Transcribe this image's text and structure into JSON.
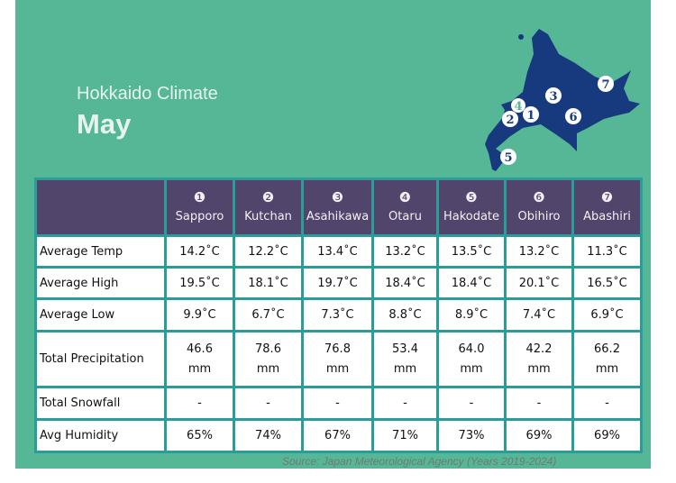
{
  "title": "Hokkaido Climate",
  "month": "May",
  "columns": [
    {
      "num": "❶",
      "city": "Sapporo"
    },
    {
      "num": "❷",
      "city": "Kutchan"
    },
    {
      "num": "❸",
      "city": "Asahikawa"
    },
    {
      "num": "❹",
      "city": "Otaru"
    },
    {
      "num": "❺",
      "city": "Hakodate"
    },
    {
      "num": "❻",
      "city": "Obihiro"
    },
    {
      "num": "❼",
      "city": "Abashiri"
    }
  ],
  "rows": [
    {
      "label": "Average Temp",
      "values": [
        "14.2˚C",
        "12.2˚C",
        "13.4˚C",
        "13.2˚C",
        "13.5˚C",
        "13.2˚C",
        "11.3˚C"
      ]
    },
    {
      "label": "Average High",
      "values": [
        "19.5˚C",
        "18.1˚C",
        "19.7˚C",
        "18.4˚C",
        "18.4˚C",
        "20.1˚C",
        "16.5˚C"
      ]
    },
    {
      "label": "Average Low",
      "values": [
        "9.9˚C",
        "6.7˚C",
        "7.3˚C",
        "8.8˚C",
        "8.9˚C",
        "7.4˚C",
        "6.9˚C"
      ]
    },
    {
      "label": "Total Precipitation",
      "values": [
        "46.6 mm",
        "78.6 mm",
        "76.8 mm",
        "53.4 mm",
        "64.0 mm",
        "42.2 mm",
        "66.2 mm"
      ]
    },
    {
      "label": "Total Snowfall",
      "values": [
        "-",
        "-",
        "-",
        "-",
        "-",
        "-",
        "-"
      ]
    },
    {
      "label": "Avg Humidity",
      "values": [
        "65%",
        "74%",
        "67%",
        "71%",
        "73%",
        "69%",
        "69%"
      ]
    }
  ],
  "map_markers": [
    "1",
    "2",
    "3",
    "4",
    "5",
    "6",
    "7"
  ],
  "source": "Source: Japan Meteorological Agency (Years 2019-2024)",
  "colors": {
    "background": "#55b796",
    "header": "#52456b",
    "border": "#2a9d9a",
    "map": "#163a7d"
  }
}
